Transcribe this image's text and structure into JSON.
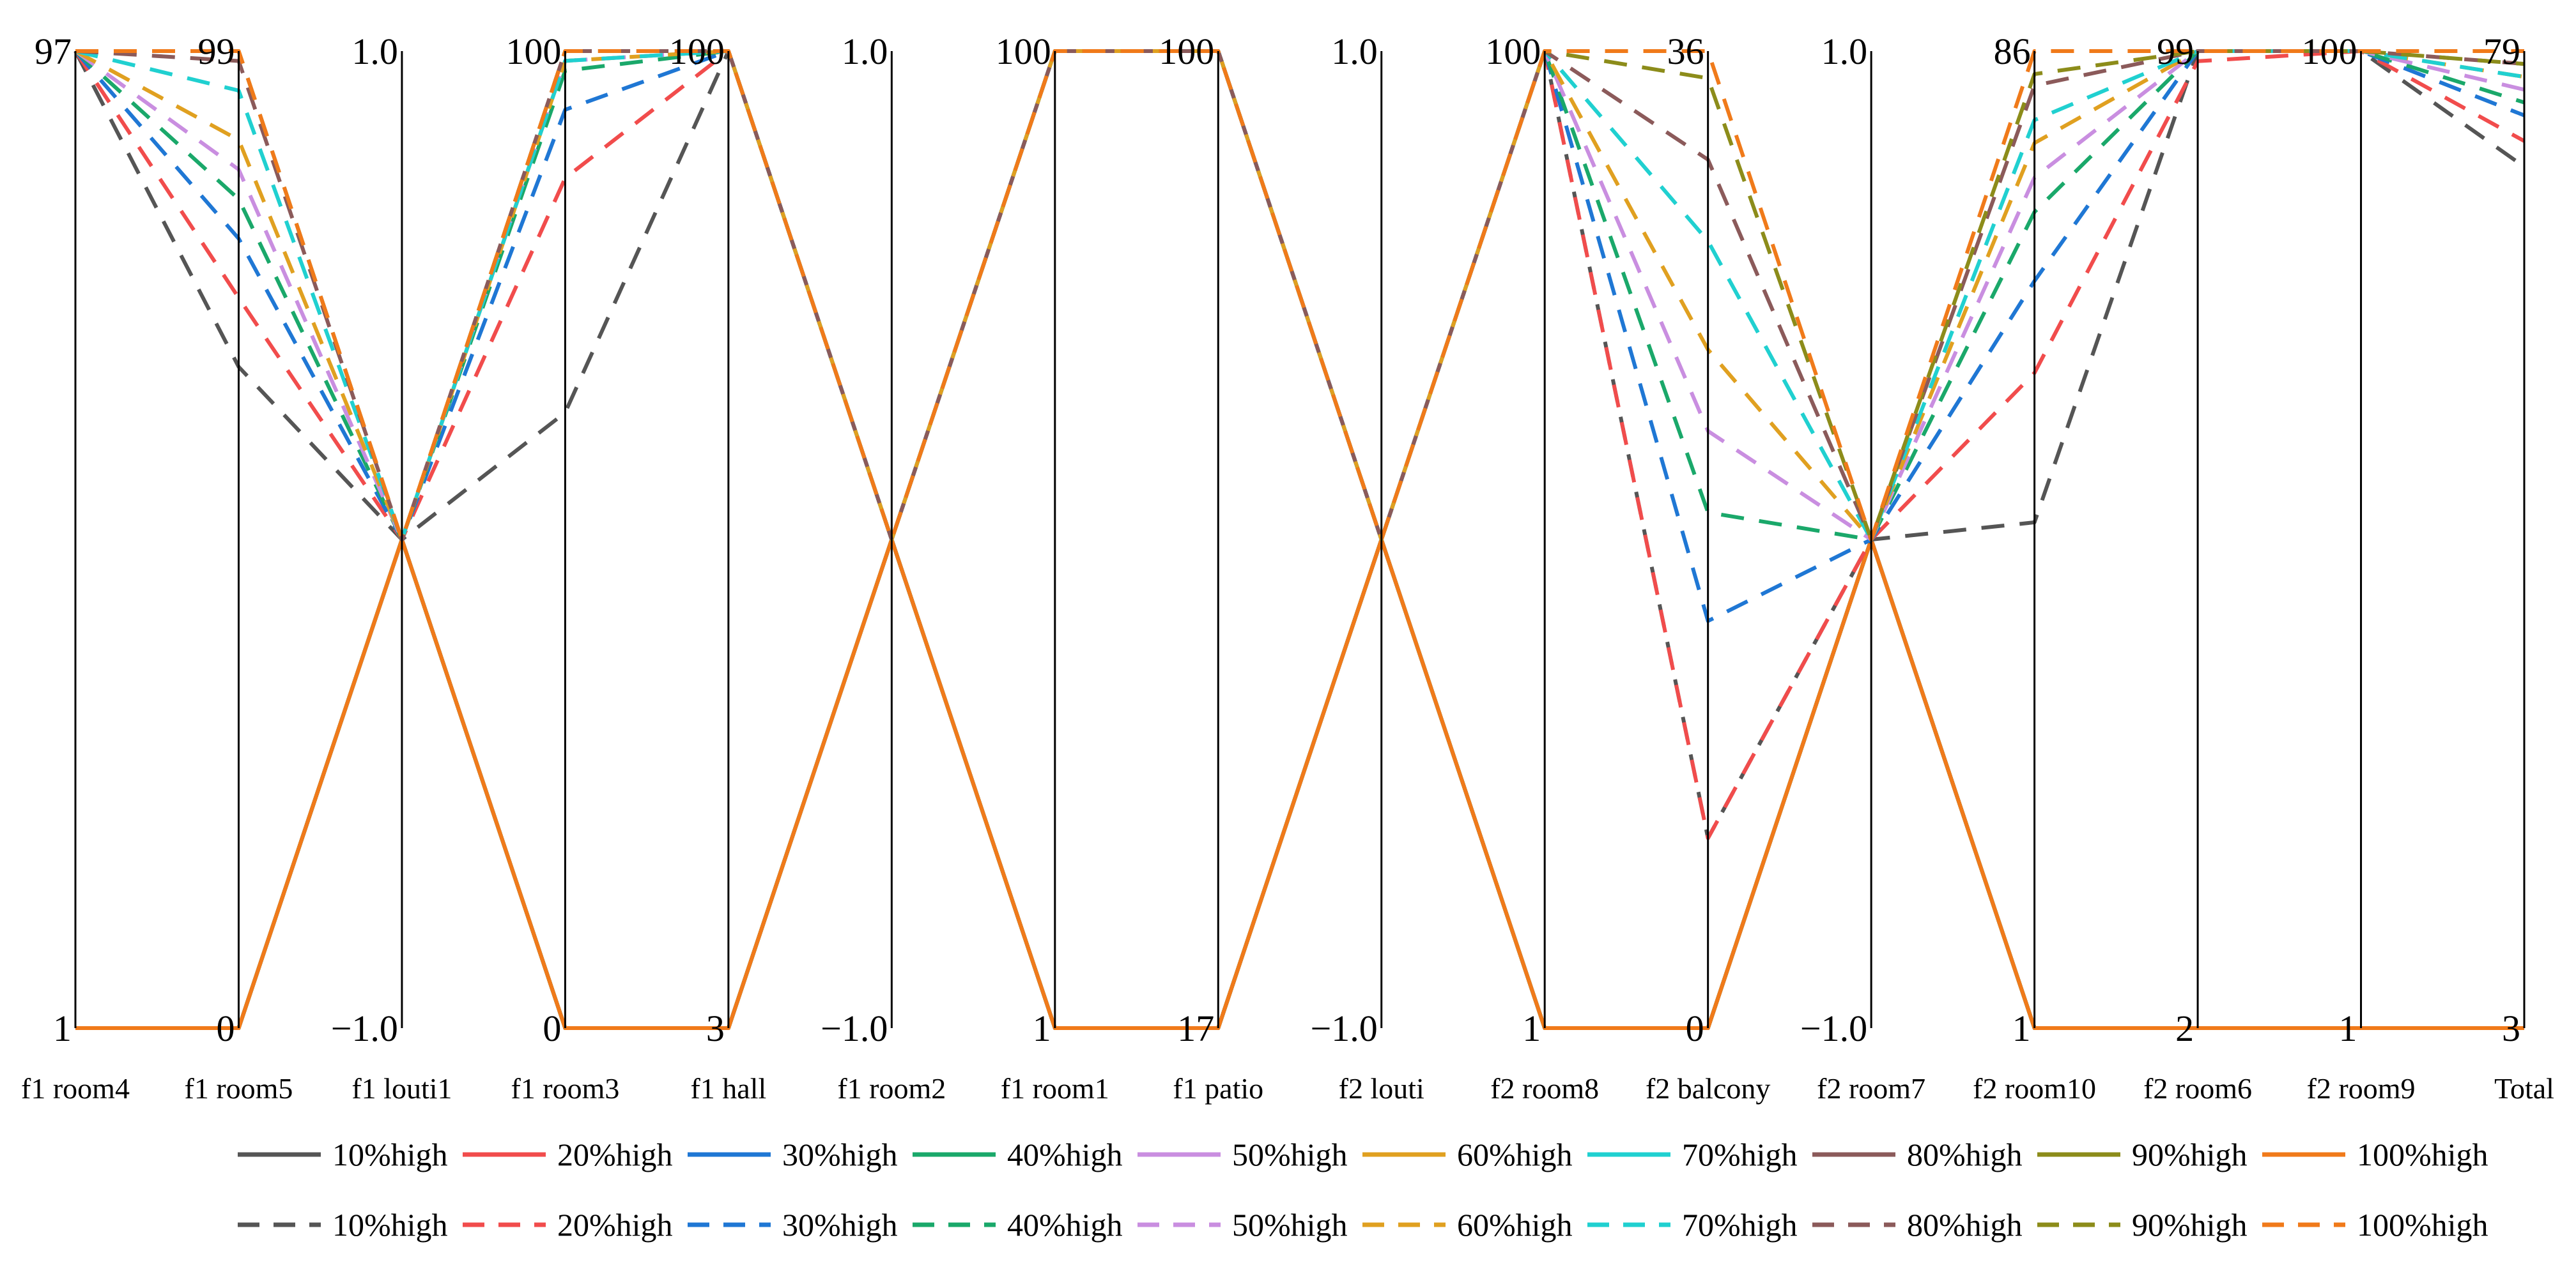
{
  "chart_data": {
    "type": "parallel-coordinates",
    "axes": [
      {
        "name": "f1 room4",
        "min": "1",
        "max": "97",
        "range": [
          1,
          97
        ]
      },
      {
        "name": "f1 room5",
        "min": "0",
        "max": "99",
        "range": [
          0,
          99
        ]
      },
      {
        "name": "f1 louti1",
        "min": "−1.0",
        "max": "1.0",
        "range": [
          -1,
          1
        ]
      },
      {
        "name": "f1 room3",
        "min": "0",
        "max": "100",
        "range": [
          0,
          100
        ]
      },
      {
        "name": "f1 hall",
        "min": "3",
        "max": "100",
        "range": [
          3,
          100
        ]
      },
      {
        "name": "f1 room2",
        "min": "−1.0",
        "max": "1.0",
        "range": [
          -1,
          1
        ]
      },
      {
        "name": "f1 room1",
        "min": "1",
        "max": "100",
        "range": [
          1,
          100
        ]
      },
      {
        "name": "f1 patio",
        "min": "17",
        "max": "100",
        "range": [
          17,
          100
        ]
      },
      {
        "name": "f2 louti",
        "min": "−1.0",
        "max": "1.0",
        "range": [
          -1,
          1
        ]
      },
      {
        "name": "f2 room8",
        "min": "1",
        "max": "100",
        "range": [
          1,
          100
        ]
      },
      {
        "name": "f2 balcony",
        "min": "0",
        "max": "36",
        "range": [
          0,
          36
        ]
      },
      {
        "name": "f2 room7",
        "min": "−1.0",
        "max": "1.0",
        "range": [
          -1,
          1
        ]
      },
      {
        "name": "f2 room10",
        "min": "1",
        "max": "86",
        "range": [
          1,
          86
        ]
      },
      {
        "name": "f2 room6",
        "min": "2",
        "max": "99",
        "range": [
          2,
          99
        ]
      },
      {
        "name": "f2 room9",
        "min": "1",
        "max": "100",
        "range": [
          1,
          100
        ]
      },
      {
        "name": "Total",
        "min": "3",
        "max": "79",
        "range": [
          3,
          79
        ]
      }
    ],
    "series": [
      {
        "name": "10%high",
        "style": "solid",
        "color": "#555555",
        "values": [
          1,
          0,
          0,
          0,
          3,
          0,
          1,
          17,
          0,
          1,
          0,
          0,
          1,
          2,
          1,
          3
        ]
      },
      {
        "name": "20%high",
        "style": "solid",
        "color": "#f14c4c",
        "values": [
          1,
          0,
          0,
          0,
          3,
          0,
          1,
          17,
          0,
          1,
          0,
          0,
          1,
          2,
          1,
          3
        ]
      },
      {
        "name": "30%high",
        "style": "solid",
        "color": "#1f77d4",
        "values": [
          1,
          0,
          0,
          0,
          3,
          0,
          1,
          17,
          0,
          1,
          0,
          0,
          1,
          2,
          1,
          3
        ]
      },
      {
        "name": "40%high",
        "style": "solid",
        "color": "#1aa86a",
        "values": [
          1,
          0,
          0,
          0,
          3,
          0,
          1,
          17,
          0,
          1,
          0,
          0,
          1,
          2,
          1,
          3
        ]
      },
      {
        "name": "50%high",
        "style": "solid",
        "color": "#c98ee0",
        "values": [
          1,
          0,
          0,
          0,
          3,
          0,
          1,
          17,
          0,
          1,
          0,
          0,
          1,
          2,
          1,
          3
        ]
      },
      {
        "name": "60%high",
        "style": "solid",
        "color": "#e0a020",
        "values": [
          1,
          0,
          0,
          0,
          3,
          0,
          1,
          17,
          0,
          1,
          0,
          0,
          1,
          2,
          1,
          3
        ]
      },
      {
        "name": "70%high",
        "style": "solid",
        "color": "#20d0d0",
        "values": [
          1,
          0,
          0,
          0,
          3,
          0,
          1,
          17,
          0,
          1,
          0,
          0,
          1,
          2,
          1,
          3
        ]
      },
      {
        "name": "80%high",
        "style": "solid",
        "color": "#8b5a5a",
        "values": [
          1,
          0,
          0,
          0,
          3,
          0,
          1,
          17,
          0,
          1,
          0,
          0,
          1,
          2,
          1,
          3
        ]
      },
      {
        "name": "90%high",
        "style": "solid",
        "color": "#8c8c1a",
        "values": [
          1,
          0,
          0,
          0,
          3,
          0,
          1,
          17,
          0,
          1,
          0,
          0,
          1,
          2,
          1,
          3
        ]
      },
      {
        "name": "100%high",
        "style": "solid",
        "color": "#f07a1a",
        "values": [
          1,
          0,
          0,
          0,
          3,
          0,
          1,
          17,
          0,
          1,
          0,
          0,
          1,
          2,
          1,
          3
        ]
      },
      {
        "name": "10%high",
        "style": "dashed",
        "color": "#555555",
        "values": [
          97,
          67,
          0,
          63,
          100,
          0,
          100,
          100,
          0,
          100,
          7,
          0,
          45,
          99,
          100,
          70
        ]
      },
      {
        "name": "20%high",
        "style": "dashed",
        "color": "#f14c4c",
        "values": [
          97,
          74,
          0,
          87,
          100,
          0,
          100,
          100,
          0,
          100,
          7,
          0,
          58,
          98,
          100,
          72
        ]
      },
      {
        "name": "30%high",
        "style": "dashed",
        "color": "#1f77d4",
        "values": [
          97,
          80,
          0,
          94,
          100,
          0,
          100,
          100,
          0,
          100,
          15,
          0,
          66,
          99,
          100,
          74
        ]
      },
      {
        "name": "40%high",
        "style": "dashed",
        "color": "#1aa86a",
        "values": [
          97,
          84,
          0,
          98,
          100,
          0,
          100,
          100,
          0,
          100,
          19,
          0,
          72,
          99,
          100,
          75
        ]
      },
      {
        "name": "50%high",
        "style": "dashed",
        "color": "#c98ee0",
        "values": [
          97,
          87,
          0,
          99,
          100,
          0,
          100,
          100,
          0,
          100,
          22,
          0,
          75,
          99,
          100,
          76
        ]
      },
      {
        "name": "60%high",
        "style": "dashed",
        "color": "#e0a020",
        "values": [
          97,
          90,
          0,
          99,
          100,
          0,
          100,
          100,
          0,
          100,
          25,
          0,
          78,
          99,
          100,
          77
        ]
      },
      {
        "name": "70%high",
        "style": "dashed",
        "color": "#20d0d0",
        "values": [
          97,
          95,
          0,
          99,
          100,
          0,
          100,
          100,
          0,
          100,
          29,
          0,
          80,
          99,
          100,
          77
        ]
      },
      {
        "name": "80%high",
        "style": "dashed",
        "color": "#8b5a5a",
        "values": [
          97,
          98,
          0,
          100,
          100,
          0,
          100,
          100,
          0,
          100,
          32,
          0,
          83,
          99,
          100,
          78
        ]
      },
      {
        "name": "90%high",
        "style": "dashed",
        "color": "#8c8c1a",
        "values": [
          97,
          99,
          0,
          100,
          100,
          0,
          100,
          100,
          0,
          100,
          35,
          0,
          84,
          99,
          100,
          78
        ]
      },
      {
        "name": "100%high",
        "style": "dashed",
        "color": "#f07a1a",
        "values": [
          97,
          99,
          0,
          100,
          100,
          0,
          100,
          100,
          0,
          100,
          36,
          0,
          86,
          99,
          100,
          79
        ]
      }
    ]
  }
}
